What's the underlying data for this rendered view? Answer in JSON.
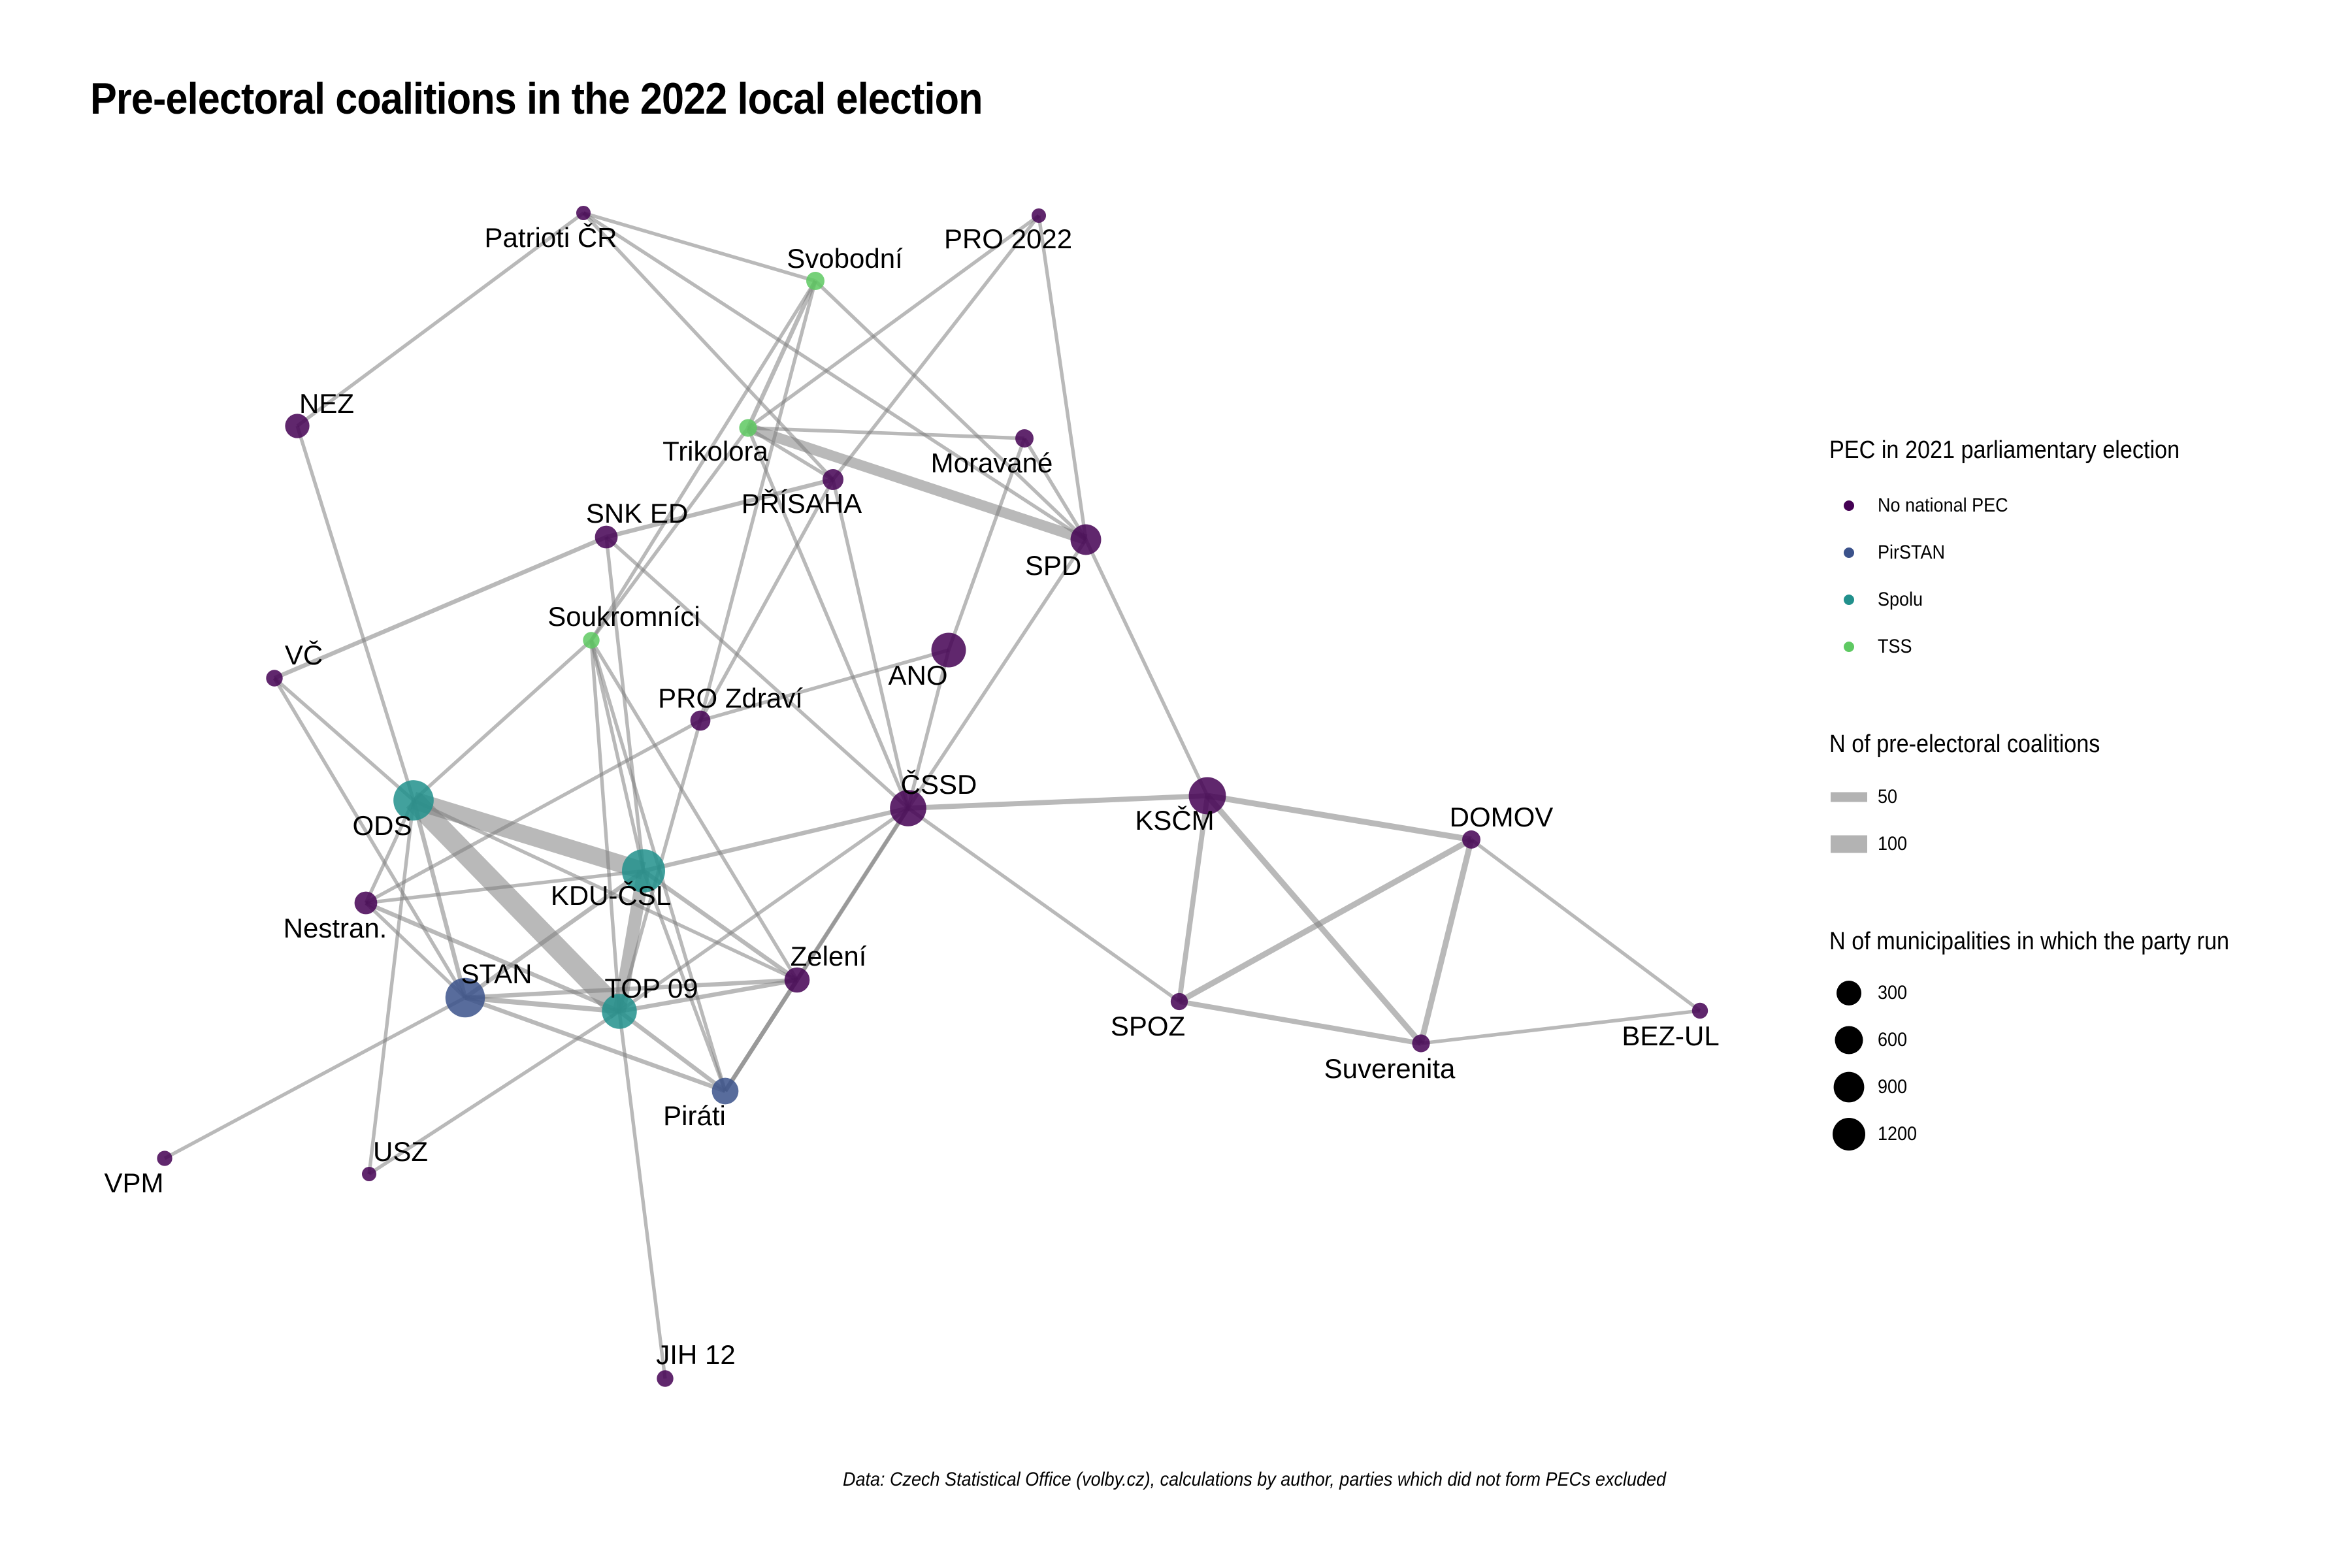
{
  "title": "Pre-electoral coalitions in the 2022 local election",
  "caption": "Data: Czech Statistical Office (volby.cz), calculations by author, parties which did not form PECs excluded",
  "colors": {
    "No national PEC": "#440154",
    "PirSTAN": "#3b528b",
    "Spolu": "#21908c",
    "TSS": "#5ec962",
    "edge": "#7f7f7f"
  },
  "legend": {
    "color": {
      "title": "PEC in 2021 parliamentary election",
      "items": [
        {
          "label": "No national PEC",
          "group": "No national PEC"
        },
        {
          "label": "PirSTAN",
          "group": "PirSTAN"
        },
        {
          "label": "Spolu",
          "group": "Spolu"
        },
        {
          "label": "TSS",
          "group": "TSS"
        }
      ]
    },
    "edge_width": {
      "title": "N of pre-electoral coalitions",
      "items": [
        {
          "label": "50",
          "value": 50
        },
        {
          "label": "100",
          "value": 100
        }
      ]
    },
    "node_size": {
      "title": "N of municipalities in which the party run",
      "items": [
        {
          "label": "300",
          "value": 300
        },
        {
          "label": "600",
          "value": 600
        },
        {
          "label": "900",
          "value": 900
        },
        {
          "label": "1200",
          "value": 1200
        }
      ]
    }
  },
  "nodes": [
    {
      "id": "Patrioti ČR",
      "group": "No national PEC",
      "size": 30
    },
    {
      "id": "Svobodní",
      "group": "TSS",
      "size": 90
    },
    {
      "id": "PRO 2022",
      "group": "No national PEC",
      "size": 30
    },
    {
      "id": "NEZ",
      "group": "No national PEC",
      "size": 250
    },
    {
      "id": "Trikolora",
      "group": "TSS",
      "size": 80
    },
    {
      "id": "Moravané",
      "group": "No national PEC",
      "size": 90
    },
    {
      "id": "PŘÍSAHA",
      "group": "No national PEC",
      "size": 150
    },
    {
      "id": "SPD",
      "group": "No national PEC",
      "size": 500
    },
    {
      "id": "SNK ED",
      "group": "No national PEC",
      "size": 200
    },
    {
      "id": "VČ",
      "group": "No national PEC",
      "size": 60
    },
    {
      "id": "Soukromníci",
      "group": "TSS",
      "size": 60
    },
    {
      "id": "ANO",
      "group": "No national PEC",
      "size": 700
    },
    {
      "id": "PRO Zdraví",
      "group": "No national PEC",
      "size": 130
    },
    {
      "id": "ČSSD",
      "group": "No national PEC",
      "size": 800
    },
    {
      "id": "ODS",
      "group": "Spolu",
      "size": 1050
    },
    {
      "id": "KSČM",
      "group": "No national PEC",
      "size": 850
    },
    {
      "id": "DOMOV",
      "group": "No national PEC",
      "size": 90
    },
    {
      "id": "KDU-ČSL",
      "group": "Spolu",
      "size": 1250
    },
    {
      "id": "Nestran.",
      "group": "No national PEC",
      "size": 200
    },
    {
      "id": "Zelení",
      "group": "No national PEC",
      "size": 280
    },
    {
      "id": "STAN",
      "group": "PirSTAN",
      "size": 1000
    },
    {
      "id": "TOP 09",
      "group": "Spolu",
      "size": 720
    },
    {
      "id": "SPOZ",
      "group": "No national PEC",
      "size": 70
    },
    {
      "id": "Suverenita",
      "group": "No national PEC",
      "size": 80
    },
    {
      "id": "BEZ-UL",
      "group": "No national PEC",
      "size": 50
    },
    {
      "id": "Piráti",
      "group": "PirSTAN",
      "size": 330
    },
    {
      "id": "VPM",
      "group": "No national PEC",
      "size": 40
    },
    {
      "id": "USZ",
      "group": "No national PEC",
      "size": 30
    },
    {
      "id": "JIH 12",
      "group": "No national PEC",
      "size": 60
    }
  ],
  "edges": [
    {
      "source": "ODS",
      "target": "TOP 09",
      "weight": 120
    },
    {
      "source": "ODS",
      "target": "KDU-ČSL",
      "weight": 100
    },
    {
      "source": "KDU-ČSL",
      "target": "TOP 09",
      "weight": 70
    },
    {
      "source": "Trikolora",
      "target": "SPD",
      "weight": 55
    },
    {
      "source": "ČSSD",
      "target": "KSČM",
      "weight": 20
    },
    {
      "source": "KSČM",
      "target": "DOMOV",
      "weight": 25
    },
    {
      "source": "KSČM",
      "target": "SPOZ",
      "weight": 20
    },
    {
      "source": "KSČM",
      "target": "Suverenita",
      "weight": 25
    },
    {
      "source": "DOMOV",
      "target": "SPOZ",
      "weight": 25
    },
    {
      "source": "DOMOV",
      "target": "Suverenita",
      "weight": 25
    },
    {
      "source": "SPOZ",
      "target": "Suverenita",
      "weight": 20
    },
    {
      "source": "DOMOV",
      "target": "BEZ-UL",
      "weight": 10
    },
    {
      "source": "Suverenita",
      "target": "BEZ-UL",
      "weight": 10
    },
    {
      "source": "ČSSD",
      "target": "SPOZ",
      "weight": 10
    },
    {
      "source": "SPD",
      "target": "KSČM",
      "weight": 10
    },
    {
      "source": "SPD",
      "target": "Moravané",
      "weight": 10
    },
    {
      "source": "SPD",
      "target": "PRO 2022",
      "weight": 10
    },
    {
      "source": "SPD",
      "target": "Svobodní",
      "weight": 10
    },
    {
      "source": "SPD",
      "target": "ČSSD",
      "weight": 10
    },
    {
      "source": "SPD",
      "target": "Patrioti ČR",
      "weight": 10
    },
    {
      "source": "Svobodní",
      "target": "Patrioti ČR",
      "weight": 10
    },
    {
      "source": "Svobodní",
      "target": "Trikolora",
      "weight": 15
    },
    {
      "source": "Svobodní",
      "target": "PRO Zdraví",
      "weight": 10
    },
    {
      "source": "Svobodní",
      "target": "Soukromníci",
      "weight": 10
    },
    {
      "source": "PRO 2022",
      "target": "PŘÍSAHA",
      "weight": 10
    },
    {
      "source": "PRO 2022",
      "target": "Trikolora",
      "weight": 10
    },
    {
      "source": "Patrioti ČR",
      "target": "NEZ",
      "weight": 10
    },
    {
      "source": "Patrioti ČR",
      "target": "PŘÍSAHA",
      "weight": 10
    },
    {
      "source": "Trikolora",
      "target": "Moravané",
      "weight": 10
    },
    {
      "source": "Trikolora",
      "target": "PŘÍSAHA",
      "weight": 10
    },
    {
      "source": "Trikolora",
      "target": "Soukromníci",
      "weight": 10
    },
    {
      "source": "Trikolora",
      "target": "ČSSD",
      "weight": 10
    },
    {
      "source": "Moravané",
      "target": "ANO",
      "weight": 10
    },
    {
      "source": "PŘÍSAHA",
      "target": "ČSSD",
      "weight": 10
    },
    {
      "source": "PŘÍSAHA",
      "target": "PRO Zdraví",
      "weight": 10
    },
    {
      "source": "SNK ED",
      "target": "VČ",
      "weight": 15
    },
    {
      "source": "SNK ED",
      "target": "PŘÍSAHA",
      "weight": 15
    },
    {
      "source": "SNK ED",
      "target": "KDU-ČSL",
      "weight": 10
    },
    {
      "source": "SNK ED",
      "target": "ČSSD",
      "weight": 10
    },
    {
      "source": "VČ",
      "target": "ODS",
      "weight": 10
    },
    {
      "source": "VČ",
      "target": "STAN",
      "weight": 10
    },
    {
      "source": "NEZ",
      "target": "ODS",
      "weight": 10
    },
    {
      "source": "Soukromníci",
      "target": "ODS",
      "weight": 10
    },
    {
      "source": "Soukromníci",
      "target": "TOP 09",
      "weight": 10
    },
    {
      "source": "Soukromníci",
      "target": "KDU-ČSL",
      "weight": 10
    },
    {
      "source": "Soukromníci",
      "target": "Zelení",
      "weight": 10
    },
    {
      "source": "Soukromníci",
      "target": "Piráti",
      "weight": 10
    },
    {
      "source": "ANO",
      "target": "PRO Zdraví",
      "weight": 10
    },
    {
      "source": "ANO",
      "target": "ČSSD",
      "weight": 10
    },
    {
      "source": "PRO Zdraví",
      "target": "TOP 09",
      "weight": 10
    },
    {
      "source": "PRO Zdraví",
      "target": "Nestran.",
      "weight": 10
    },
    {
      "source": "ČSSD",
      "target": "KDU-ČSL",
      "weight": 15
    },
    {
      "source": "ČSSD",
      "target": "Zelení",
      "weight": 10
    },
    {
      "source": "ČSSD",
      "target": "Piráti",
      "weight": 15
    },
    {
      "source": "ČSSD",
      "target": "TOP 09",
      "weight": 10
    },
    {
      "source": "ODS",
      "target": "STAN",
      "weight": 15
    },
    {
      "source": "ODS",
      "target": "Nestran.",
      "weight": 10
    },
    {
      "source": "ODS",
      "target": "Zelení",
      "weight": 10
    },
    {
      "source": "ODS",
      "target": "USZ",
      "weight": 10
    },
    {
      "source": "KDU-ČSL",
      "target": "STAN",
      "weight": 15
    },
    {
      "source": "KDU-ČSL",
      "target": "Nestran.",
      "weight": 10
    },
    {
      "source": "KDU-ČSL",
      "target": "Zelení",
      "weight": 15
    },
    {
      "source": "KDU-ČSL",
      "target": "Piráti",
      "weight": 10
    },
    {
      "source": "Nestran.",
      "target": "STAN",
      "weight": 10
    },
    {
      "source": "Nestran.",
      "target": "TOP 09",
      "weight": 15
    },
    {
      "source": "STAN",
      "target": "TOP 09",
      "weight": 20
    },
    {
      "source": "STAN",
      "target": "Zelení",
      "weight": 15
    },
    {
      "source": "STAN",
      "target": "Piráti",
      "weight": 15
    },
    {
      "source": "STAN",
      "target": "VPM",
      "weight": 10
    },
    {
      "source": "TOP 09",
      "target": "Zelení",
      "weight": 15
    },
    {
      "source": "TOP 09",
      "target": "Piráti",
      "weight": 15
    },
    {
      "source": "TOP 09",
      "target": "USZ",
      "weight": 10
    },
    {
      "source": "TOP 09",
      "target": "JIH 12",
      "weight": 10
    },
    {
      "source": "Zelení",
      "target": "Piráti",
      "weight": 15
    }
  ]
}
